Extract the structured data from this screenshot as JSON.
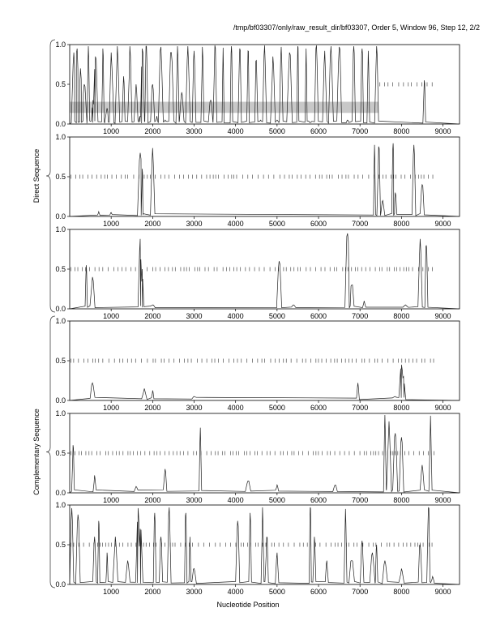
{
  "header": "/tmp/bf03307/only/raw_result_dir/bf03307, Order 5, Window 96, Step 12, 2/2",
  "xlabel": "Nucleotide Position",
  "groups": [
    {
      "label": "Direct Sequence"
    },
    {
      "label": "Complementary Sequence"
    }
  ],
  "chart_data": {
    "type": "line",
    "xlabel": "Nucleotide Position",
    "xlim": [
      0,
      9400
    ],
    "ylim": [
      0,
      1
    ],
    "x_ticks": [
      1000,
      2000,
      3000,
      4000,
      5000,
      6000,
      7000,
      8000,
      9000
    ],
    "y_ticks": [
      0.0,
      0.5,
      1.0
    ],
    "panels": [
      {
        "group": "Direct Sequence",
        "frame": 1,
        "highlight_region": [
          0,
          7450
        ],
        "marker_range": [
          7450,
          8800
        ],
        "peaks": [
          [
            100,
            0.9
          ],
          [
            180,
            0.95
          ],
          [
            260,
            0.7
          ],
          [
            350,
            0.5
          ],
          [
            450,
            0.98
          ],
          [
            560,
            0.3
          ],
          [
            620,
            0.85
          ],
          [
            800,
            0.95
          ],
          [
            900,
            0.2
          ],
          [
            1000,
            0.9
          ],
          [
            1150,
            0.98
          ],
          [
            1300,
            0.6
          ],
          [
            1450,
            0.98
          ],
          [
            1600,
            0.5
          ],
          [
            1700,
            0.1
          ],
          [
            1750,
            0.95
          ],
          [
            1850,
            0.98
          ],
          [
            2000,
            0.5
          ],
          [
            2100,
            0.1
          ],
          [
            2200,
            0.97
          ],
          [
            2300,
            0.05
          ],
          [
            2450,
            0.9
          ],
          [
            2600,
            0.98
          ],
          [
            2700,
            0.4
          ],
          [
            2850,
            0.98
          ],
          [
            3000,
            0.92
          ],
          [
            3200,
            0.97
          ],
          [
            3400,
            0.3
          ],
          [
            3500,
            0.99
          ],
          [
            3700,
            0.96
          ],
          [
            3900,
            0.98
          ],
          [
            4100,
            0.95
          ],
          [
            4300,
            0.92
          ],
          [
            4500,
            0.8
          ],
          [
            4600,
            0.05
          ],
          [
            4700,
            0.99
          ],
          [
            4900,
            0.85
          ],
          [
            5000,
            0.05
          ],
          [
            5100,
            0.97
          ],
          [
            5300,
            0.9
          ],
          [
            5500,
            0.98
          ],
          [
            5700,
            0.95
          ],
          [
            5800,
            0.02
          ],
          [
            5950,
            0.99
          ],
          [
            6150,
            0.92
          ],
          [
            6300,
            0.98
          ],
          [
            6500,
            0.97
          ],
          [
            6700,
            0.05
          ],
          [
            6850,
            0.98
          ],
          [
            7050,
            0.95
          ],
          [
            7200,
            0.92
          ],
          [
            7400,
            0.98
          ],
          [
            8550,
            0.55
          ]
        ]
      },
      {
        "group": "Direct Sequence",
        "frame": 2,
        "marker_range": [
          0,
          8800
        ],
        "peaks": [
          [
            700,
            0.06
          ],
          [
            1000,
            0.05
          ],
          [
            1700,
            0.8
          ],
          [
            1750,
            0.6
          ],
          [
            2000,
            0.86
          ],
          [
            7350,
            0.9
          ],
          [
            7450,
            0.88
          ],
          [
            7550,
            0.2
          ],
          [
            7800,
            0.92
          ],
          [
            7850,
            0.3
          ],
          [
            8300,
            0.9
          ],
          [
            8500,
            0.4
          ]
        ]
      },
      {
        "group": "Direct Sequence",
        "frame": 3,
        "marker_range": [
          0,
          8800
        ],
        "peaks": [
          [
            400,
            0.55
          ],
          [
            550,
            0.4
          ],
          [
            1700,
            0.88
          ],
          [
            1750,
            0.5
          ],
          [
            2000,
            0.05
          ],
          [
            5050,
            0.6
          ],
          [
            5400,
            0.05
          ],
          [
            6700,
            0.95
          ],
          [
            6800,
            0.3
          ],
          [
            7100,
            0.1
          ],
          [
            8100,
            0.05
          ],
          [
            8450,
            0.88
          ],
          [
            8600,
            0.8
          ]
        ]
      },
      {
        "group": "Complementary Sequence",
        "frame": 1,
        "marker_range": [
          0,
          8800
        ],
        "peaks": [
          [
            550,
            0.22
          ],
          [
            1800,
            0.15
          ],
          [
            2000,
            0.12
          ],
          [
            3000,
            0.05
          ],
          [
            6950,
            0.22
          ],
          [
            7850,
            0.05
          ],
          [
            8000,
            0.45
          ],
          [
            8050,
            0.3
          ]
        ]
      },
      {
        "group": "Complementary Sequence",
        "frame": 2,
        "marker_range": [
          0,
          8800
        ],
        "peaks": [
          [
            80,
            0.6
          ],
          [
            600,
            0.22
          ],
          [
            1600,
            0.08
          ],
          [
            2300,
            0.3
          ],
          [
            3150,
            0.82
          ],
          [
            4300,
            0.15
          ],
          [
            5000,
            0.1
          ],
          [
            6400,
            0.1
          ],
          [
            7600,
            0.98
          ],
          [
            7700,
            0.9
          ],
          [
            7850,
            0.75
          ],
          [
            8000,
            0.7
          ],
          [
            8500,
            0.35
          ],
          [
            8700,
            0.97
          ]
        ]
      },
      {
        "group": "Complementary Sequence",
        "frame": 3,
        "marker_range": [
          0,
          8800
        ],
        "peaks": [
          [
            50,
            0.96
          ],
          [
            200,
            0.88
          ],
          [
            600,
            0.6
          ],
          [
            700,
            0.8
          ],
          [
            900,
            0.4
          ],
          [
            1100,
            0.6
          ],
          [
            1400,
            0.3
          ],
          [
            1650,
            0.96
          ],
          [
            1700,
            0.7
          ],
          [
            2050,
            0.9
          ],
          [
            2200,
            0.6
          ],
          [
            2400,
            0.97
          ],
          [
            2800,
            0.9
          ],
          [
            2900,
            0.6
          ],
          [
            3000,
            0.2
          ],
          [
            4050,
            0.8
          ],
          [
            4350,
            0.9
          ],
          [
            4650,
            0.97
          ],
          [
            4750,
            0.6
          ],
          [
            5000,
            0.4
          ],
          [
            5800,
            0.97
          ],
          [
            5900,
            0.6
          ],
          [
            6200,
            0.3
          ],
          [
            6650,
            0.95
          ],
          [
            6800,
            0.3
          ],
          [
            7050,
            0.55
          ],
          [
            7300,
            0.4
          ],
          [
            7400,
            0.5
          ],
          [
            7600,
            0.3
          ],
          [
            8000,
            0.2
          ],
          [
            8450,
            0.5
          ],
          [
            8650,
            0.97
          ],
          [
            8750,
            0.1
          ]
        ]
      }
    ]
  }
}
